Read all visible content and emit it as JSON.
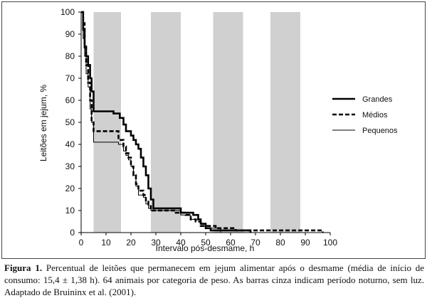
{
  "chart_data": {
    "type": "line",
    "xlabel": "Intervalo pós-desmame, h",
    "ylabel": "Leitões em jejum, %",
    "xlim": [
      0,
      100
    ],
    "ylim": [
      0,
      100
    ],
    "x_ticks": [
      0,
      10,
      20,
      30,
      40,
      50,
      60,
      70,
      80,
      90,
      100
    ],
    "y_ticks": [
      0,
      10,
      20,
      30,
      40,
      50,
      60,
      70,
      80,
      90,
      100
    ],
    "night_bands": [
      [
        5,
        16
      ],
      [
        28,
        40
      ],
      [
        53,
        65
      ],
      [
        76,
        88
      ]
    ],
    "series": [
      {
        "name": "Grandes",
        "style": "solid-thick",
        "points": [
          [
            0,
            100
          ],
          [
            0.8,
            100
          ],
          [
            0.8,
            92
          ],
          [
            1.4,
            92
          ],
          [
            1.4,
            84
          ],
          [
            2,
            84
          ],
          [
            2,
            80
          ],
          [
            2.8,
            80
          ],
          [
            2.8,
            76
          ],
          [
            3.6,
            76
          ],
          [
            3.6,
            70
          ],
          [
            4.2,
            70
          ],
          [
            4.2,
            64
          ],
          [
            5,
            64
          ],
          [
            5,
            55
          ],
          [
            13,
            55
          ],
          [
            13,
            54
          ],
          [
            15.5,
            54
          ],
          [
            15.5,
            52
          ],
          [
            17,
            52
          ],
          [
            17,
            49
          ],
          [
            18,
            49
          ],
          [
            18,
            46
          ],
          [
            20,
            46
          ],
          [
            20,
            44
          ],
          [
            21,
            44
          ],
          [
            21,
            42
          ],
          [
            22,
            42
          ],
          [
            22,
            40
          ],
          [
            23,
            40
          ],
          [
            23,
            38
          ],
          [
            24,
            38
          ],
          [
            24,
            34
          ],
          [
            25,
            34
          ],
          [
            25,
            30
          ],
          [
            26,
            30
          ],
          [
            26,
            26
          ],
          [
            27,
            26
          ],
          [
            27,
            20
          ],
          [
            28,
            20
          ],
          [
            28,
            15
          ],
          [
            29,
            15
          ],
          [
            29,
            11
          ],
          [
            40,
            11
          ],
          [
            40,
            9
          ],
          [
            45,
            9
          ],
          [
            45,
            8
          ],
          [
            47,
            8
          ],
          [
            47,
            6
          ],
          [
            48,
            6
          ],
          [
            48,
            4
          ],
          [
            50,
            4
          ],
          [
            50,
            2
          ],
          [
            52,
            2
          ],
          [
            52,
            1
          ],
          [
            68,
            1
          ],
          [
            68,
            0
          ]
        ]
      },
      {
        "name": "Médios",
        "style": "dashed-thick",
        "points": [
          [
            0,
            100
          ],
          [
            0.8,
            100
          ],
          [
            0.8,
            95
          ],
          [
            1.4,
            95
          ],
          [
            1.4,
            85
          ],
          [
            2,
            85
          ],
          [
            2,
            76
          ],
          [
            2.8,
            76
          ],
          [
            2.8,
            68
          ],
          [
            3.6,
            68
          ],
          [
            3.6,
            60
          ],
          [
            4.2,
            60
          ],
          [
            4.2,
            50
          ],
          [
            5,
            50
          ],
          [
            5,
            46
          ],
          [
            15,
            46
          ],
          [
            15,
            42
          ],
          [
            17,
            42
          ],
          [
            17,
            39
          ],
          [
            18,
            39
          ],
          [
            18,
            36
          ],
          [
            19,
            36
          ],
          [
            19,
            34
          ],
          [
            20,
            34
          ],
          [
            20,
            30
          ],
          [
            21,
            30
          ],
          [
            21,
            26
          ],
          [
            22,
            26
          ],
          [
            22,
            22
          ],
          [
            23,
            22
          ],
          [
            23,
            19
          ],
          [
            25,
            19
          ],
          [
            25,
            17
          ],
          [
            26,
            17
          ],
          [
            26,
            14
          ],
          [
            27,
            14
          ],
          [
            27,
            12
          ],
          [
            28,
            12
          ],
          [
            28,
            10
          ],
          [
            38,
            10
          ],
          [
            38,
            9
          ],
          [
            42,
            9
          ],
          [
            42,
            8
          ],
          [
            44,
            8
          ],
          [
            44,
            6
          ],
          [
            46,
            6
          ],
          [
            46,
            5
          ],
          [
            48,
            5
          ],
          [
            48,
            3
          ],
          [
            54,
            3
          ],
          [
            54,
            2
          ],
          [
            62,
            2
          ],
          [
            62,
            1
          ],
          [
            97,
            1
          ],
          [
            97,
            0
          ]
        ]
      },
      {
        "name": "Pequenos",
        "style": "solid-thin",
        "points": [
          [
            0,
            100
          ],
          [
            0.8,
            100
          ],
          [
            0.8,
            88
          ],
          [
            1.4,
            88
          ],
          [
            1.4,
            80
          ],
          [
            2,
            80
          ],
          [
            2,
            72
          ],
          [
            2.8,
            72
          ],
          [
            2.8,
            66
          ],
          [
            3.6,
            66
          ],
          [
            3.6,
            56
          ],
          [
            4.2,
            56
          ],
          [
            4.2,
            50
          ],
          [
            5,
            50
          ],
          [
            5,
            41
          ],
          [
            15,
            41
          ],
          [
            15,
            40
          ],
          [
            17,
            40
          ],
          [
            17,
            37
          ],
          [
            18,
            37
          ],
          [
            18,
            35
          ],
          [
            19,
            35
          ],
          [
            19,
            33
          ],
          [
            20,
            33
          ],
          [
            20,
            30
          ],
          [
            21,
            30
          ],
          [
            21,
            26
          ],
          [
            22,
            26
          ],
          [
            22,
            21
          ],
          [
            23,
            21
          ],
          [
            23,
            17
          ],
          [
            25,
            17
          ],
          [
            25,
            16
          ],
          [
            26,
            16
          ],
          [
            26,
            13
          ],
          [
            27,
            13
          ],
          [
            27,
            11
          ],
          [
            28,
            11
          ],
          [
            28,
            10
          ],
          [
            40,
            10
          ],
          [
            40,
            8
          ],
          [
            44,
            8
          ],
          [
            44,
            6
          ],
          [
            48,
            6
          ],
          [
            48,
            4
          ],
          [
            50,
            4
          ],
          [
            50,
            2
          ],
          [
            56,
            2
          ],
          [
            56,
            0
          ]
        ]
      }
    ]
  },
  "caption": {
    "label": "Figura 1.",
    "text": " Percentual de leitões que permanecem em jejum alimentar após o desmame (média de início de consumo: 15,4 ± 1,38 h). 64 animais por categoria de peso. As barras cinza indicam período noturno, sem luz. Adaptado de Bruininx et al. (2001)."
  }
}
